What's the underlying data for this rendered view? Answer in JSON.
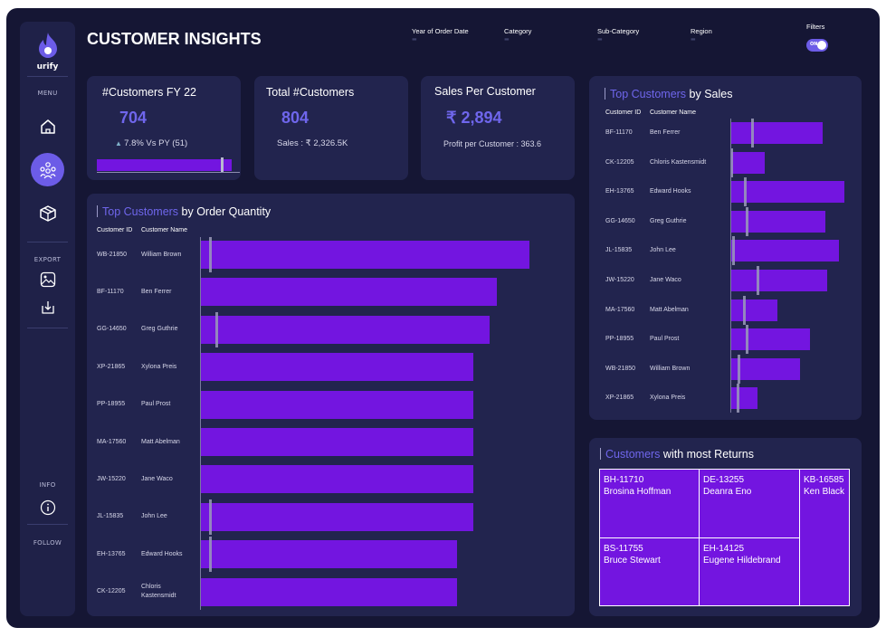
{
  "app": {
    "brand": "urify",
    "title": "CUSTOMER INSIGHTS"
  },
  "sidebar": {
    "menu_label": "MENU",
    "nav": [
      {
        "icon": "home-icon",
        "active": false
      },
      {
        "icon": "customers-icon",
        "active": true
      },
      {
        "icon": "product-box-icon",
        "active": false
      }
    ],
    "export_label": "EXPORT",
    "export_items": [
      {
        "icon": "image-export-icon"
      },
      {
        "icon": "download-icon"
      }
    ],
    "info_label": "INFO",
    "follow_label": "FOLLOW"
  },
  "filters": {
    "items": [
      {
        "label": "Year of Order Date"
      },
      {
        "label": "Category"
      },
      {
        "label": "Sub-Category"
      },
      {
        "label": "Region"
      }
    ],
    "toggle_label": "Filters",
    "toggle_state": "ON"
  },
  "kpis": {
    "customers_fy": {
      "title": "#Customers  FY 22",
      "value": "704",
      "delta": "7.8%  Vs PY (51)",
      "progress": 0.94
    },
    "total_customers": {
      "title": "Total #Customers",
      "value": "804",
      "sales": "Sales :  ₹ 2,326.5K"
    },
    "sales_per_customer": {
      "title": "Sales Per Customer",
      "value": "₹ 2,894",
      "profit": "Profit per Customer :  363.6"
    }
  },
  "order_quantity": {
    "title_accent": "Top Customers",
    "title_rest": " by Order Quantity",
    "headers": {
      "id": "Customer ID",
      "name": "Customer Name"
    }
  },
  "top_sales": {
    "title_accent": "Top Customers",
    "title_rest": " by Sales",
    "headers": {
      "id": "Customer ID",
      "name": "Customer Name"
    }
  },
  "returns": {
    "title_accent": "Customers",
    "title_rest": " with most Returns",
    "cells": [
      {
        "id": "BH-11710",
        "name": "Brosina Hoffman"
      },
      {
        "id": "DE-13255",
        "name": "Deanra Eno"
      },
      {
        "id": "KB-16585",
        "name": "Ken Black"
      },
      {
        "id": "BS-11755",
        "name": "Bruce Stewart"
      },
      {
        "id": "EH-14125",
        "name": "Eugene Hildebrand"
      }
    ]
  },
  "chart_data": [
    {
      "type": "bar",
      "title": "Top Customers by Order Quantity",
      "orientation": "horizontal",
      "categories": [
        "WB-21850 William Brown",
        "BF-11170 Ben Ferrer",
        "GG-14650 Greg Guthrie",
        "XP-21865 Xylona Preis",
        "PP-18955 Paul Prost",
        "MA-17560 Matt Abelman",
        "JW-15220 Jane Waco",
        "JL-15835 John Lee",
        "EH-13765 Edward Hooks",
        "CK-12205 Chloris Kastensmidt"
      ],
      "ids": [
        "WB-21850",
        "BF-11170",
        "GG-14650",
        "XP-21865",
        "PP-18955",
        "MA-17560",
        "JW-15220",
        "JL-15835",
        "EH-13765",
        "CK-12205"
      ],
      "names": [
        "William Brown",
        "Ben Ferrer",
        "Greg Guthrie",
        "Xylona Preis",
        "Paul Prost",
        "Matt Abelman",
        "Jane Waco",
        "John Lee",
        "Edward Hooks",
        "Chloris Kastensmidt"
      ],
      "values": [
        100,
        90,
        88,
        83,
        83,
        83,
        83,
        83,
        78,
        78
      ],
      "reference_py": [
        3,
        null,
        5,
        null,
        null,
        null,
        null,
        3,
        3,
        null
      ],
      "xlim": [
        0,
        100
      ]
    },
    {
      "type": "bar",
      "title": "Top Customers by Sales",
      "orientation": "horizontal",
      "categories": [
        "BF-11170 Ben Ferrer",
        "CK-12205 Chloris Kastensmidt",
        "EH-13765 Edward Hooks",
        "GG-14650 Greg Guthrie",
        "JL-15835 John Lee",
        "JW-15220 Jane Waco",
        "MA-17560 Matt Abelman",
        "PP-18955 Paul Prost",
        "WB-21850 William Brown",
        "XP-21865 Xylona Preis"
      ],
      "ids": [
        "BF-11170",
        "CK-12205",
        "EH-13765",
        "GG-14650",
        "JL-15835",
        "JW-15220",
        "MA-17560",
        "PP-18955",
        "WB-21850",
        "XP-21865"
      ],
      "names": [
        "Ben Ferrer",
        "Chloris Kastensmidt",
        "Edward Hooks",
        "Greg Guthrie",
        "John Lee",
        "Jane Waco",
        "Matt Abelman",
        "Paul Prost",
        "William Brown",
        "Xylona Preis"
      ],
      "values": [
        81,
        30,
        100,
        83,
        95,
        85,
        41,
        70,
        61,
        24
      ],
      "reference_py": [
        19,
        1,
        13,
        14,
        2,
        24,
        12,
        14,
        7,
        6
      ],
      "xlim": [
        0,
        100
      ]
    }
  ]
}
